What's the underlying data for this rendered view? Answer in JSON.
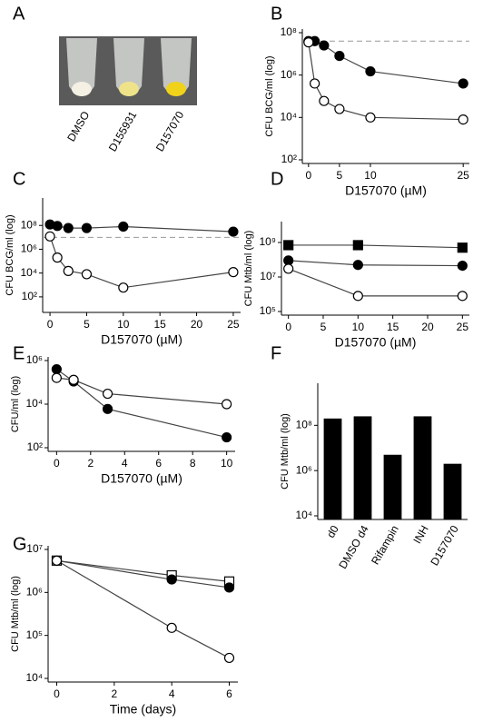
{
  "chart_data": [
    {
      "type": "image",
      "panel": "A",
      "labels": [
        "DMSO",
        "D155931",
        "D157070"
      ]
    },
    {
      "type": "line",
      "panel": "B",
      "x_label": "D157070 (µM)",
      "y_label": "CFU BCG/ml (log)",
      "log_y": true,
      "x": [
        0,
        1,
        2.5,
        5,
        10,
        25
      ],
      "xlim": [
        -1,
        26
      ],
      "xticks": [
        0,
        5,
        10,
        25
      ],
      "ylim": [
        100,
        100000000
      ],
      "yticks": [
        {
          "value": 100,
          "label": "10²"
        },
        {
          "value": 10000,
          "label": "10⁴"
        },
        {
          "value": 1000000,
          "label": "10⁶"
        },
        {
          "value": 100000000,
          "label": "10⁸"
        }
      ],
      "reference_line": 40000000,
      "series": [
        {
          "marker": "circle",
          "color": "#000000",
          "values": [
            40000000,
            40000000,
            25000000,
            8000000,
            1500000,
            400000
          ]
        },
        {
          "marker": "circle",
          "color": "#ffffff",
          "values": [
            35000000,
            400000,
            60000,
            25000,
            10000,
            8000
          ]
        }
      ]
    },
    {
      "type": "line",
      "panel": "C",
      "x_label": "D157070 (µM)",
      "y_label": "CFU BCG/ml (log)",
      "log_y": true,
      "x": [
        0,
        1,
        2.5,
        5,
        10,
        25
      ],
      "xlim": [
        -1,
        26
      ],
      "xticks": [
        0,
        5,
        10,
        15,
        20,
        25
      ],
      "ylim": [
        10,
        10000000000
      ],
      "yticks": [
        {
          "value": 100,
          "label": "10²"
        },
        {
          "value": 10000,
          "label": "10⁴"
        },
        {
          "value": 1000000,
          "label": "10⁶"
        },
        {
          "value": 100000000,
          "label": "10⁸"
        }
      ],
      "reference_line": 10000000,
      "series": [
        {
          "marker": "circle",
          "color": "#000000",
          "values": [
            120000000,
            90000000,
            60000000,
            60000000,
            80000000,
            30000000
          ]
        },
        {
          "marker": "circle",
          "color": "#ffffff",
          "values": [
            12000000,
            200000,
            15000,
            8000,
            600,
            12000
          ]
        }
      ]
    },
    {
      "type": "line",
      "panel": "D",
      "x_label": "D157070 (µM)",
      "y_label": "CFU Mtb/ml (log)",
      "log_y": true,
      "x": [
        0,
        10,
        25
      ],
      "xlim": [
        -1,
        26
      ],
      "xticks": [
        0,
        5,
        10,
        15,
        20,
        25
      ],
      "ylim": [
        100000,
        10000000000
      ],
      "yticks": [
        {
          "value": 100000,
          "label": "10⁵"
        },
        {
          "value": 10000000,
          "label": "10⁷"
        },
        {
          "value": 1000000000,
          "label": "10⁹"
        }
      ],
      "series": [
        {
          "marker": "square",
          "color": "#000000",
          "values": [
            700000000,
            700000000,
            500000000
          ]
        },
        {
          "marker": "circle",
          "color": "#000000",
          "values": [
            90000000,
            50000000,
            45000000
          ]
        },
        {
          "marker": "circle",
          "color": "#ffffff",
          "values": [
            30000000,
            800000,
            800000
          ]
        }
      ]
    },
    {
      "type": "line",
      "panel": "E",
      "x_label": "D157070 (µM)",
      "y_label": "CFU/ml (log)",
      "log_y": true,
      "x": [
        0,
        1,
        3,
        10
      ],
      "xlim": [
        -0.5,
        10.5
      ],
      "xticks": [
        0,
        2,
        4,
        6,
        8,
        10
      ],
      "ylim": [
        100,
        1000000
      ],
      "yticks": [
        {
          "value": 100,
          "label": "10²"
        },
        {
          "value": 10000,
          "label": "10⁴"
        },
        {
          "value": 1000000,
          "label": "10⁶"
        }
      ],
      "series": [
        {
          "marker": "circle",
          "color": "#000000",
          "values": [
            400000,
            110000,
            6000,
            300
          ]
        },
        {
          "marker": "circle",
          "color": "#ffffff",
          "values": [
            160000,
            130000,
            30000,
            10000
          ]
        }
      ]
    },
    {
      "type": "bar",
      "panel": "F",
      "y_label": "CFU Mtb/ml (log)",
      "log_y": true,
      "categories": [
        "d0",
        "DMSO d4",
        "Rifampin",
        "INH",
        "D157070"
      ],
      "values": [
        200000000,
        250000000,
        5000000,
        250000000,
        2000000
      ],
      "color": "#000000",
      "ylim": [
        10000,
        5000000000
      ],
      "yticks": [
        {
          "value": 10000,
          "label": "10⁴"
        },
        {
          "value": 1000000,
          "label": "10⁶"
        },
        {
          "value": 100000000,
          "label": "10⁸"
        }
      ]
    },
    {
      "type": "line",
      "panel": "G",
      "x_label": "Time (days)",
      "y_label": "CFU Mtb/ml (log)",
      "log_y": true,
      "x": [
        0,
        4,
        6
      ],
      "xlim": [
        -0.3,
        6.3
      ],
      "xticks": [
        0,
        2,
        4,
        6
      ],
      "ylim": [
        10000,
        10000000
      ],
      "yticks": [
        {
          "value": 10000,
          "label": "10⁴"
        },
        {
          "value": 100000,
          "label": "10⁵"
        },
        {
          "value": 1000000,
          "label": "10⁶"
        },
        {
          "value": 10000000,
          "label": "10⁷"
        }
      ],
      "series": [
        {
          "marker": "square",
          "color": "#ffffff",
          "values": [
            5500000,
            2500000,
            1800000
          ]
        },
        {
          "marker": "circle",
          "color": "#000000",
          "values": [
            5500000,
            2000000,
            1300000
          ]
        },
        {
          "marker": "circle",
          "color": "#ffffff",
          "values": [
            5500000,
            150000,
            30000
          ]
        }
      ]
    }
  ]
}
